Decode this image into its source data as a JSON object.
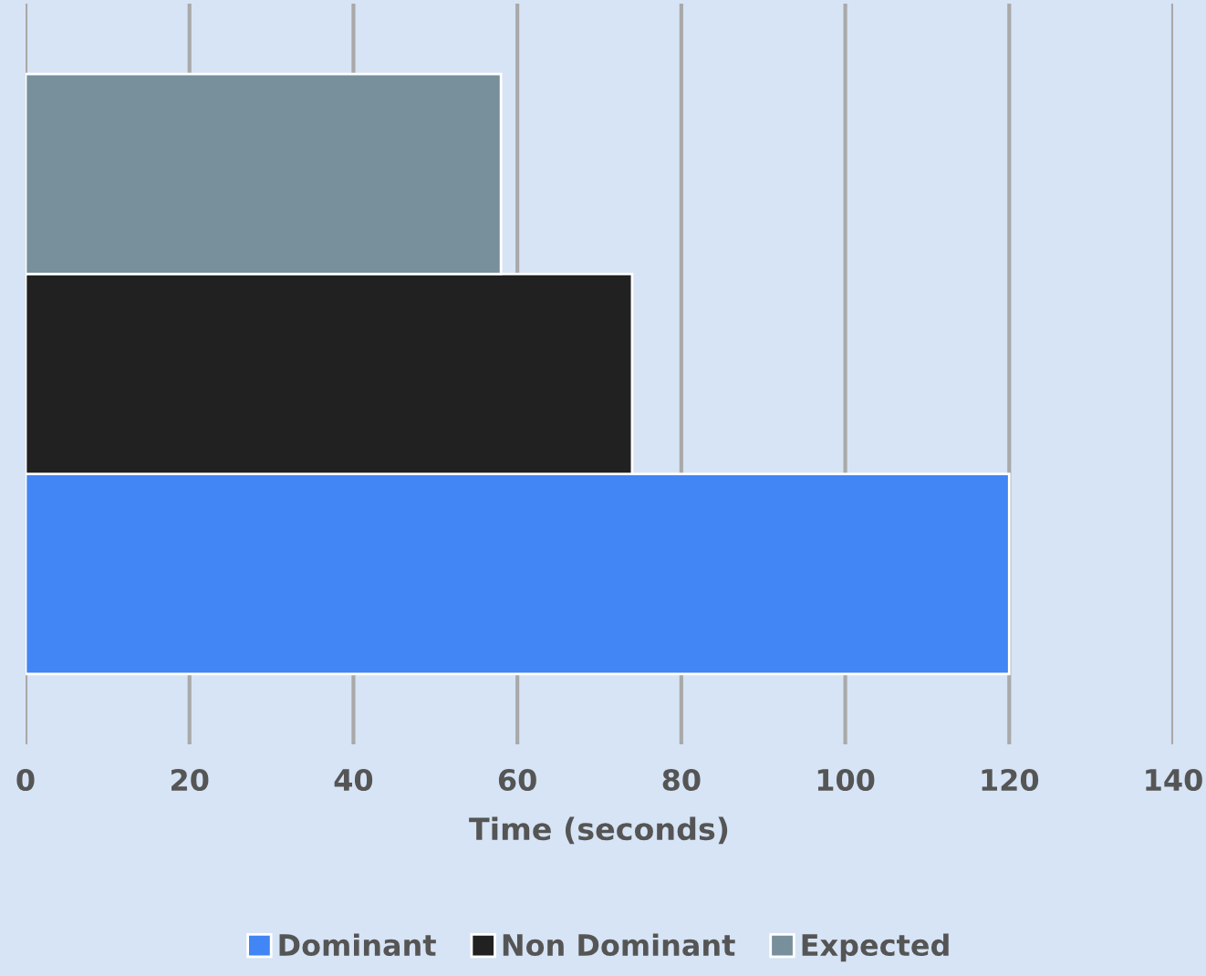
{
  "chart_data": {
    "type": "bar",
    "orientation": "horizontal",
    "categories": [
      null
    ],
    "series": [
      {
        "name": "Dominant",
        "color": "#4285f4",
        "values": [
          120
        ]
      },
      {
        "name": "Non Dominant",
        "color": "#212121",
        "values": [
          74
        ]
      },
      {
        "name": "Expected",
        "color": "#78909c",
        "values": [
          58
        ]
      }
    ],
    "xlabel": "Time (seconds)",
    "xlim": [
      0,
      140
    ],
    "xticks": [
      0,
      20,
      40,
      60,
      80,
      100,
      120,
      140
    ],
    "grid": "x",
    "legend": "bottom"
  }
}
